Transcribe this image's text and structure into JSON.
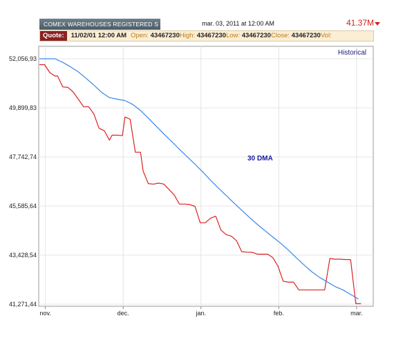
{
  "header": {
    "title": "COMEX WAREHOUSES REGISTERED S",
    "datetime": "mar. 03, 2011 at 12:00 AM",
    "price": "41.37M"
  },
  "quote": {
    "label": "Quote:",
    "datetime": "11/02/01 12:00 AM",
    "open_label": "Open:",
    "open": "43467230",
    "high_label": "High:",
    "high": "43467230",
    "low_label": "Low:",
    "low": "43467230",
    "close_label": "Close:",
    "close": "43467230",
    "vol_label": "Vol:"
  },
  "colors": {
    "price_line": "#dd1f1f",
    "dma_line": "#3a86e8",
    "dma_label": "#1a1aa0",
    "accent": "#d12020"
  },
  "chart_data": {
    "type": "line",
    "historical_label": "Historical",
    "annotation": "30 DMA",
    "x_ticks": [
      "nov.",
      "dec.",
      "jan.",
      "feb.",
      "mar."
    ],
    "x_tick_positions": [
      2.3,
      32.3,
      62.3,
      92.3,
      122.3
    ],
    "y_ticks": [
      "52,056,93",
      "49,899,83",
      "47,742,74",
      "45,585,64",
      "43,428,54",
      "41,271,44"
    ],
    "ylim": [
      41271440,
      52056930
    ],
    "xlim": [
      0,
      125
    ],
    "grid": true,
    "series": [
      {
        "key": "price",
        "x": [
          0,
          2,
          4,
          6,
          7,
          9,
          11,
          13,
          15,
          17,
          19,
          21,
          23,
          25,
          27,
          28,
          30,
          32,
          33,
          35,
          37,
          39,
          40,
          42,
          44,
          46,
          48,
          50,
          52,
          54,
          56,
          58,
          60,
          62,
          64,
          66,
          68,
          70,
          72,
          74,
          76,
          78,
          80,
          82,
          84,
          86,
          88,
          90,
          92,
          94,
          96,
          98,
          100,
          102,
          104,
          106,
          108,
          110,
          112,
          114,
          116,
          118,
          120,
          122,
          124
        ],
        "y": [
          51800000,
          51800000,
          51450000,
          51300000,
          51300000,
          50820000,
          50800000,
          50600000,
          50280000,
          49950000,
          49950000,
          49630000,
          49000000,
          48900000,
          48480000,
          48700000,
          48700000,
          48680000,
          49500000,
          49400000,
          47950000,
          47950000,
          47120000,
          46570000,
          46550000,
          46590000,
          46550000,
          46310000,
          46070000,
          45670000,
          45670000,
          45650000,
          45570000,
          44850000,
          44850000,
          45050000,
          45140000,
          44530000,
          44330000,
          44260000,
          44060000,
          43580000,
          43560000,
          43550000,
          43470000,
          43470000,
          43470000,
          43320000,
          42940000,
          42280000,
          42240000,
          42240000,
          41900000,
          41900000,
          41900000,
          41900000,
          41900000,
          41900000,
          43280000,
          43250000,
          43250000,
          43230000,
          43230000,
          41300000,
          41300000
        ]
      },
      {
        "key": "dma",
        "x": [
          0,
          3,
          6,
          9,
          12,
          15,
          18,
          21,
          24,
          27,
          30,
          33,
          36,
          39,
          42,
          45,
          48,
          51,
          54,
          57,
          60,
          63,
          66,
          69,
          72,
          75,
          78,
          81,
          84,
          87,
          90,
          93,
          96,
          99,
          102,
          105,
          108,
          111,
          114,
          117,
          120,
          123
        ],
        "y": [
          52056930,
          52056930,
          52056930,
          51900000,
          51700000,
          51480000,
          51200000,
          50900000,
          50580000,
          50350000,
          50280000,
          50220000,
          50050000,
          49780000,
          49450000,
          49100000,
          48750000,
          48420000,
          48080000,
          47750000,
          47420000,
          47080000,
          46720000,
          46380000,
          46050000,
          45720000,
          45400000,
          45080000,
          44780000,
          44500000,
          44220000,
          43950000,
          43650000,
          43320000,
          43000000,
          42700000,
          42450000,
          42250000,
          42050000,
          41900000,
          41700000,
          41500000
        ]
      }
    ]
  }
}
